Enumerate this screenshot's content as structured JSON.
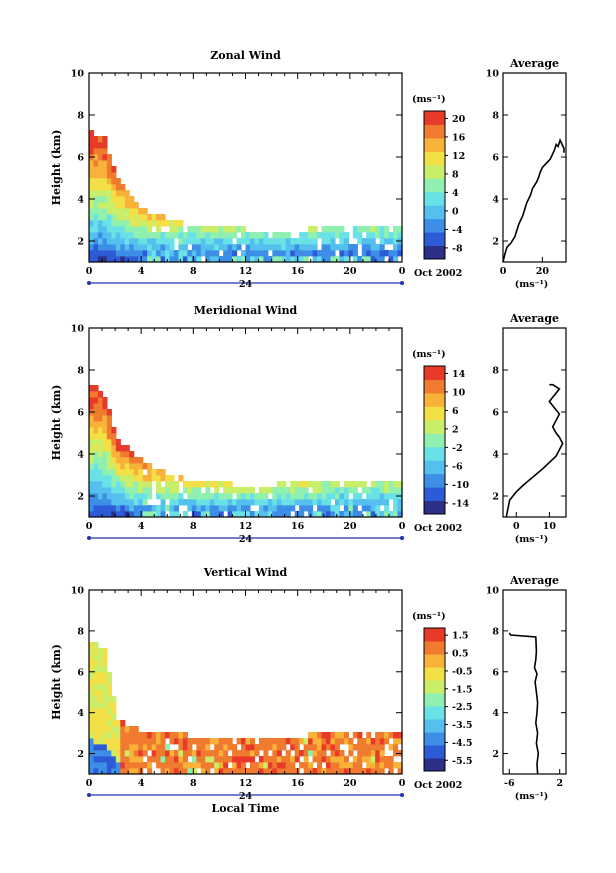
{
  "figure": {
    "date_label": "Oct 2002",
    "x_axis_title": "Local Time",
    "y_axis_title": "Height (km)",
    "day_label": "24",
    "units_label": "(ms⁻¹)"
  },
  "colors": {
    "scale": [
      "#2b2f86",
      "#2d5ad6",
      "#3d8ee6",
      "#55c0ee",
      "#68e2e6",
      "#8ff0b0",
      "#c8ee6a",
      "#f2e046",
      "#f8b23a",
      "#f07a2e",
      "#e83a28"
    ],
    "frame": "#000000",
    "axis_bar": "#2233aa"
  },
  "chart_data": [
    {
      "type": "heatmap",
      "title": "Zonal Wind",
      "xlabel": "",
      "ylabel": "Height (km)",
      "xlim": [
        0,
        24
      ],
      "ylim": [
        1,
        10
      ],
      "x_ticks": [
        "0",
        "4",
        "8",
        "12",
        "16",
        "20",
        "0"
      ],
      "y_ticks": [
        "2",
        "4",
        "6",
        "8",
        "10"
      ],
      "colorbar": {
        "label": "(ms⁻¹)",
        "ticks": [
          "20",
          "16",
          "12",
          "8",
          "4",
          "0",
          "-4",
          "-8"
        ],
        "vmin": -10,
        "vmax": 22
      },
      "field": {
        "top_heights_km": [
          7.1,
          6.8,
          4.9,
          4.0,
          3.4,
          3.1,
          2.9,
          2.8,
          2.7,
          2.6,
          2.5,
          2.5,
          2.4,
          2.4,
          2.4,
          2.4,
          2.4,
          2.5,
          2.5,
          2.6,
          2.6,
          2.6,
          2.6,
          2.6,
          2.6
        ],
        "peak_values": [
          21,
          20,
          17,
          15,
          13,
          11,
          10,
          9,
          8,
          7,
          6,
          6,
          5,
          5,
          5,
          5,
          5,
          5,
          5,
          5,
          5,
          5,
          5,
          5,
          5
        ]
      },
      "average_profile": {
        "title": "Average",
        "xlabel": "(ms⁻¹)",
        "x_ticks": [
          "0",
          "20"
        ],
        "y_ticks": [
          "2",
          "4",
          "6",
          "8",
          "10"
        ],
        "xlim": [
          0,
          32
        ],
        "ylim": [
          1,
          10
        ],
        "x": [
          0,
          1,
          2,
          4,
          6,
          8,
          10,
          11,
          12,
          14,
          15,
          17,
          18,
          19,
          20,
          21,
          22,
          23,
          24,
          25,
          26,
          27,
          28,
          29,
          30,
          31,
          31
        ],
        "y": [
          1.0,
          1.4,
          1.7,
          1.9,
          2.2,
          2.8,
          3.2,
          3.5,
          3.8,
          4.2,
          4.5,
          4.8,
          5.0,
          5.3,
          5.5,
          5.6,
          5.7,
          5.8,
          5.9,
          6.1,
          6.3,
          6.6,
          6.5,
          6.8,
          6.6,
          6.4,
          6.2
        ]
      }
    },
    {
      "type": "heatmap",
      "title": "Meridional Wind",
      "xlabel": "",
      "ylabel": "Height (km)",
      "xlim": [
        0,
        24
      ],
      "ylim": [
        1,
        10
      ],
      "x_ticks": [
        "0",
        "4",
        "8",
        "12",
        "16",
        "20",
        "0"
      ],
      "y_ticks": [
        "2",
        "4",
        "6",
        "8",
        "10"
      ],
      "colorbar": {
        "label": "(ms⁻¹)",
        "ticks": [
          "14",
          "10",
          "6",
          "2",
          "-2",
          "-6",
          "-10",
          "-14"
        ],
        "vmin": -16,
        "vmax": 16
      },
      "field": {
        "top_heights_km": [
          7.2,
          6.7,
          4.6,
          4.0,
          3.5,
          3.2,
          2.9,
          2.7,
          2.6,
          2.5,
          2.5,
          2.4,
          2.4,
          2.4,
          2.4,
          2.5,
          2.5,
          2.6,
          2.6,
          2.7,
          2.7,
          2.7,
          2.7,
          2.7,
          2.6
        ],
        "peak_values": [
          15,
          14,
          13,
          12,
          10,
          8,
          6,
          5,
          4,
          3,
          3,
          2,
          2,
          2,
          2,
          2,
          2,
          2,
          2,
          2,
          2,
          2,
          2,
          2,
          2
        ]
      },
      "average_profile": {
        "title": "Average",
        "xlabel": "(ms⁻¹)",
        "x_ticks": [
          "0",
          "10"
        ],
        "y_ticks": [
          "2",
          "4",
          "6",
          "8"
        ],
        "xlim": [
          -4,
          15
        ],
        "ylim": [
          1,
          10
        ],
        "x": [
          -3,
          -2,
          0,
          2,
          5,
          8,
          10,
          12,
          13,
          14,
          13,
          12,
          11,
          12,
          13,
          12,
          11,
          10,
          11,
          12,
          13,
          12,
          11,
          10
        ],
        "y": [
          1.0,
          1.8,
          2.2,
          2.5,
          2.9,
          3.3,
          3.6,
          3.9,
          4.2,
          4.5,
          4.8,
          5.0,
          5.3,
          5.6,
          5.9,
          6.1,
          6.3,
          6.5,
          6.7,
          6.9,
          7.1,
          7.2,
          7.3,
          7.3
        ]
      }
    },
    {
      "type": "heatmap",
      "title": "Vertical Wind",
      "xlabel": "Local Time",
      "ylabel": "Height (km)",
      "xlim": [
        0,
        24
      ],
      "ylim": [
        1,
        10
      ],
      "x_ticks": [
        "0",
        "4",
        "8",
        "12",
        "16",
        "20",
        "0"
      ],
      "y_ticks": [
        "2",
        "4",
        "6",
        "8",
        "10"
      ],
      "colorbar": {
        "label": "(ms⁻¹)",
        "ticks": [
          "1.5",
          "0.5",
          "-0.5",
          "-1.5",
          "-2.5",
          "-3.5",
          "-4.5",
          "-5.5"
        ],
        "vmin": -6.5,
        "vmax": 2.0
      },
      "field": {
        "top_heights_km": [
          7.4,
          7.0,
          3.6,
          3.2,
          3.0,
          2.9,
          2.8,
          2.8,
          2.7,
          2.7,
          2.7,
          2.7,
          2.7,
          2.7,
          2.7,
          2.7,
          2.7,
          2.8,
          2.8,
          2.8,
          2.8,
          2.8,
          2.8,
          2.8,
          2.8
        ],
        "peak_values": [
          -2,
          -3,
          -1,
          0.5,
          0.5,
          0.5,
          0.5,
          0.5,
          0.5,
          0.5,
          0.5,
          0.5,
          0.5,
          0.5,
          0.5,
          0.5,
          0.5,
          0.5,
          0.5,
          0.5,
          0.5,
          0.5,
          0.5,
          0.5,
          0.5
        ]
      },
      "average_profile": {
        "title": "Average",
        "xlabel": "(ms⁻¹)",
        "x_ticks": [
          "-6",
          "2"
        ],
        "y_ticks": [
          "2",
          "4",
          "6",
          "8",
          "10"
        ],
        "xlim": [
          -7,
          3
        ],
        "ylim": [
          1,
          10
        ],
        "x": [
          -1.5,
          -1.6,
          -1.4,
          -1.7,
          -1.5,
          -1.8,
          -1.6,
          -1.5,
          -1.7,
          -1.9,
          -1.6,
          -2.0,
          -1.8,
          -1.7,
          -1.8,
          -5.8,
          -6.0
        ],
        "y": [
          1.0,
          1.5,
          2.0,
          2.5,
          3.0,
          3.5,
          4.0,
          4.5,
          5.0,
          5.5,
          5.9,
          6.2,
          6.6,
          7.0,
          7.7,
          7.8,
          7.9
        ]
      }
    }
  ]
}
